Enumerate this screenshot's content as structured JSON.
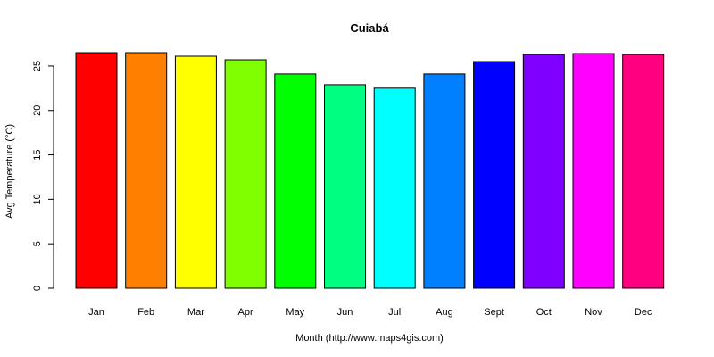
{
  "chart_data": {
    "type": "bar",
    "title": "Cuiabá",
    "xlabel": "Month (http://www.maps4gis.com)",
    "ylabel": "Avg Temperature (°C)",
    "categories": [
      "Jan",
      "Feb",
      "Mar",
      "Apr",
      "May",
      "Jun",
      "Jul",
      "Aug",
      "Sept",
      "Oct",
      "Nov",
      "Dec"
    ],
    "values": [
      26.5,
      26.5,
      26.1,
      25.7,
      24.1,
      22.9,
      22.5,
      24.1,
      25.5,
      26.3,
      26.4,
      26.3
    ],
    "colors": [
      "#ff0000",
      "#ff8000",
      "#ffff00",
      "#80ff00",
      "#00ff00",
      "#00ff80",
      "#00ffff",
      "#0080ff",
      "#0000ff",
      "#8000ff",
      "#ff00ff",
      "#ff0080"
    ],
    "ylim": [
      0,
      26.5
    ],
    "yticks": [
      0,
      5,
      10,
      15,
      20,
      25
    ],
    "grid": false,
    "legend": "none"
  }
}
